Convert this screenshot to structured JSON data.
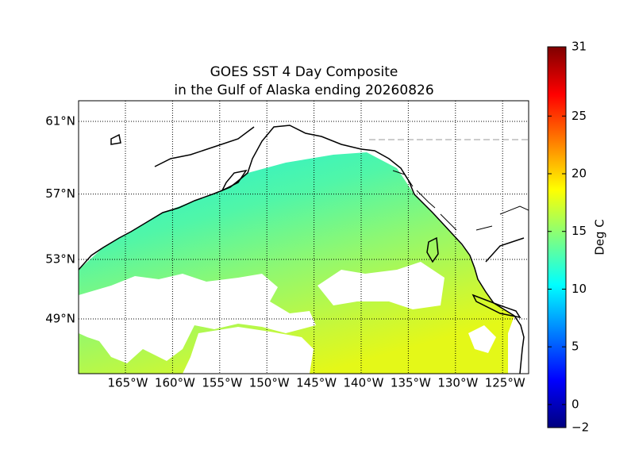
{
  "map": {
    "title": [
      "GOES SST 4 Day Composite",
      "in the Gulf of Alaska ending 20260826"
    ],
    "lon_ticks": [
      {
        "value": -165,
        "label": "165°W"
      },
      {
        "value": -160,
        "label": "160°W"
      },
      {
        "value": -155,
        "label": "155°W"
      },
      {
        "value": -150,
        "label": "150°W"
      },
      {
        "value": -145,
        "label": "145°W"
      },
      {
        "value": -140,
        "label": "140°W"
      },
      {
        "value": -135,
        "label": "135°W"
      },
      {
        "value": -130,
        "label": "130°W"
      },
      {
        "value": -125,
        "label": "125°W"
      }
    ],
    "lat_ticks": [
      {
        "value": 61,
        "label": "61°N"
      },
      {
        "value": 57,
        "label": "57°N"
      },
      {
        "value": 53,
        "label": "53°N"
      },
      {
        "value": 49,
        "label": "49°N"
      }
    ]
  },
  "colorbar": {
    "label": "Deg C",
    "range": [
      -2,
      31
    ],
    "ticks": [
      31,
      25,
      20,
      15,
      10,
      5,
      0,
      {
        "value": -2,
        "label": "−2"
      }
    ]
  }
}
